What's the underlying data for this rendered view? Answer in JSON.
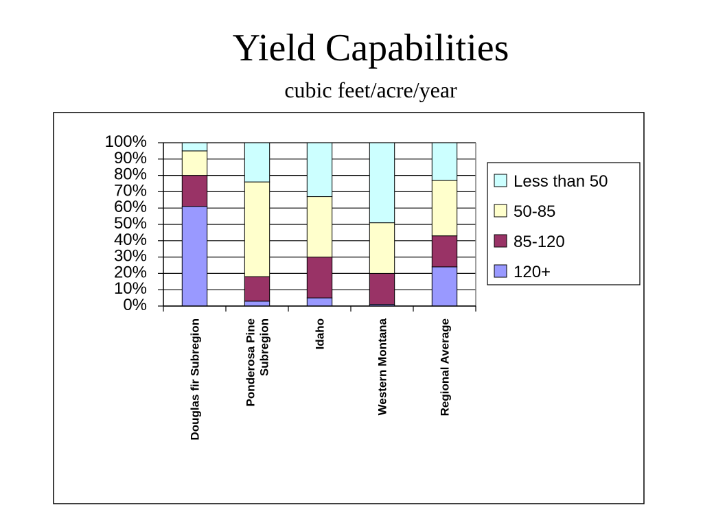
{
  "slide": {
    "title": "Yield Capabilities",
    "subtitle": "cubic feet/acre/year"
  },
  "chart_data": {
    "type": "bar",
    "stacked": true,
    "percent_stacked": true,
    "categories": [
      [
        "Douglas fir Subregion"
      ],
      [
        "Ponderosa Pine",
        "Subregion"
      ],
      [
        "Idaho"
      ],
      [
        "Western Montana"
      ],
      [
        "Regional Average"
      ]
    ],
    "series": [
      {
        "name": "120+",
        "color": "#9999ff",
        "values": [
          61,
          3,
          5,
          1,
          24
        ]
      },
      {
        "name": "85-120",
        "color": "#993366",
        "values": [
          19,
          15,
          25,
          19,
          19
        ]
      },
      {
        "name": "50-85",
        "color": "#ffffcc",
        "values": [
          15,
          58,
          37,
          31,
          34
        ]
      },
      {
        "name": "Less than 50",
        "color": "#ccffff",
        "values": [
          5,
          24,
          33,
          49,
          23
        ]
      }
    ],
    "legend_order": [
      "Less than 50",
      "50-85",
      "85-120",
      "120+"
    ],
    "yticks": [
      "0%",
      "10%",
      "20%",
      "30%",
      "40%",
      "50%",
      "60%",
      "70%",
      "80%",
      "90%",
      "100%"
    ],
    "ylim": [
      0,
      100
    ],
    "grid": true,
    "legend_position": "right"
  }
}
